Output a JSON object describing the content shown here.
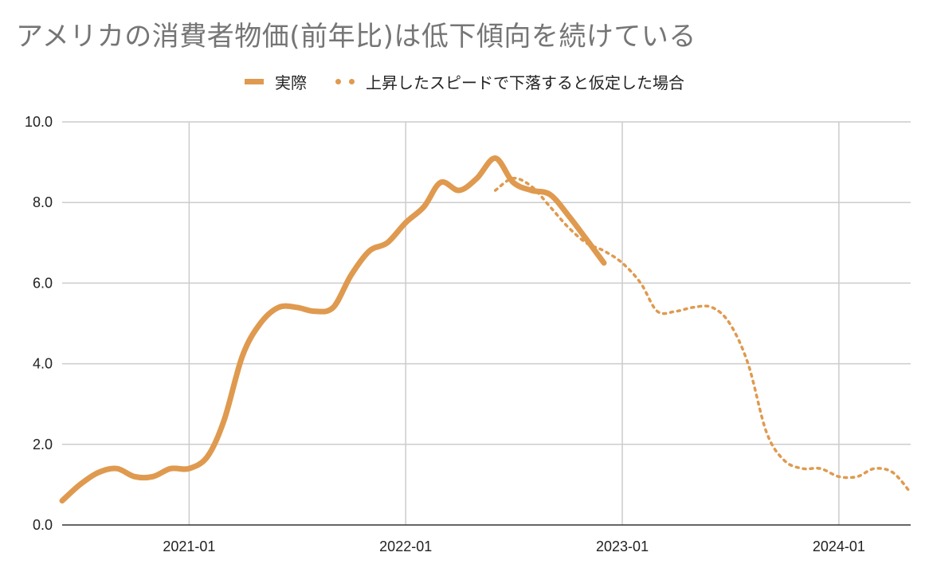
{
  "title": "アメリカの消費者物価(前年比)は低下傾向を続けている",
  "legend": {
    "actual": "実際",
    "hypothetical": "上昇したスピードで下落すると仮定した場合"
  },
  "colors": {
    "series": "#DF9A4F",
    "grid": "#cccccc",
    "axis": "#333333",
    "title": "#757575"
  },
  "chart_data": {
    "type": "line",
    "title": "アメリカの消費者物価(前年比)は低下傾向を続けている",
    "xlabel": "",
    "ylabel": "",
    "ylim": [
      0,
      10
    ],
    "y_ticks": [
      "0.0",
      "2.0",
      "4.0",
      "6.0",
      "8.0",
      "10.0"
    ],
    "x_ticks": [
      "2021-01",
      "2022-01",
      "2023-01",
      "2024-01"
    ],
    "grid": true,
    "legend_position": "top-center",
    "series": [
      {
        "name": "実際",
        "style": "solid",
        "x": [
          "2020-06",
          "2020-07",
          "2020-08",
          "2020-09",
          "2020-10",
          "2020-11",
          "2020-12",
          "2021-01",
          "2021-02",
          "2021-03",
          "2021-04",
          "2021-05",
          "2021-06",
          "2021-07",
          "2021-08",
          "2021-09",
          "2021-10",
          "2021-11",
          "2021-12",
          "2022-01",
          "2022-02",
          "2022-03",
          "2022-04",
          "2022-05",
          "2022-06",
          "2022-07",
          "2022-08",
          "2022-09",
          "2022-10",
          "2022-11",
          "2022-12"
        ],
        "y": [
          0.6,
          1.0,
          1.3,
          1.4,
          1.2,
          1.2,
          1.4,
          1.4,
          1.7,
          2.6,
          4.2,
          5.0,
          5.4,
          5.4,
          5.3,
          5.4,
          6.2,
          6.8,
          7.0,
          7.5,
          7.9,
          8.5,
          8.3,
          8.6,
          9.1,
          8.5,
          8.3,
          8.2,
          7.7,
          7.1,
          6.5
        ]
      },
      {
        "name": "上昇したスピードで下落すると仮定した場合",
        "style": "dotted",
        "x": [
          "2022-06",
          "2022-07",
          "2022-08",
          "2022-09",
          "2022-10",
          "2022-11",
          "2022-12",
          "2023-01",
          "2023-02",
          "2023-03",
          "2023-04",
          "2023-05",
          "2023-06",
          "2023-07",
          "2023-08",
          "2023-09",
          "2023-10",
          "2023-11",
          "2023-12",
          "2024-01",
          "2024-02",
          "2024-03",
          "2024-04",
          "2024-05"
        ],
        "y": [
          8.3,
          8.6,
          8.4,
          7.9,
          7.4,
          7.0,
          6.8,
          6.5,
          6.0,
          5.3,
          5.3,
          5.4,
          5.4,
          5.0,
          4.0,
          2.3,
          1.6,
          1.4,
          1.4,
          1.2,
          1.2,
          1.4,
          1.3,
          0.8
        ]
      }
    ]
  }
}
